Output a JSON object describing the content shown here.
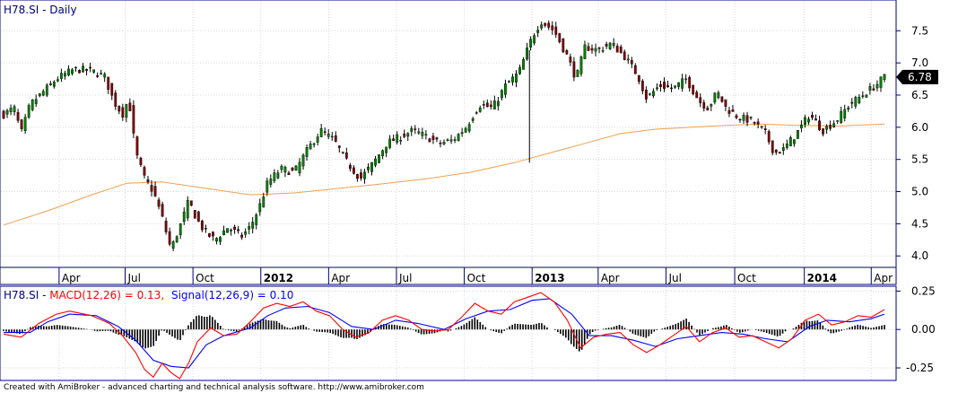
{
  "chart_data": [
    {
      "type": "candlestick",
      "title": "H78.SI - Daily",
      "y_ticks": [
        4.0,
        4.5,
        5.0,
        5.5,
        6.0,
        6.5,
        7.0,
        7.5
      ],
      "y_tick_labels": [
        "4.0",
        "4.5",
        "5.0",
        "5.5",
        "6.0",
        "6.5",
        "7.0",
        "7.5"
      ],
      "ylim": [
        3.85,
        7.95
      ],
      "last_value": 6.78,
      "last_value_label": "6.78",
      "x_labels": [
        {
          "label": "Apr",
          "year": false
        },
        {
          "label": "Jul",
          "year": false
        },
        {
          "label": "Oct",
          "year": false
        },
        {
          "label": "2012",
          "year": true
        },
        {
          "label": "Apr",
          "year": false
        },
        {
          "label": "Jul",
          "year": false
        },
        {
          "label": "Oct",
          "year": false
        },
        {
          "label": "2013",
          "year": true
        },
        {
          "label": "Apr",
          "year": false
        },
        {
          "label": "Jul",
          "year": false
        },
        {
          "label": "Oct",
          "year": false
        },
        {
          "label": "2014",
          "year": true
        },
        {
          "label": "Apr",
          "year": false
        }
      ],
      "price_path": [
        {
          "t": 0.0,
          "v": 6.2
        },
        {
          "t": 0.012,
          "v": 6.3
        },
        {
          "t": 0.02,
          "v": 5.9
        },
        {
          "t": 0.03,
          "v": 6.35
        },
        {
          "t": 0.045,
          "v": 6.55
        },
        {
          "t": 0.06,
          "v": 6.75
        },
        {
          "t": 0.08,
          "v": 6.9
        },
        {
          "t": 0.1,
          "v": 6.88
        },
        {
          "t": 0.115,
          "v": 6.78
        },
        {
          "t": 0.125,
          "v": 6.4
        },
        {
          "t": 0.135,
          "v": 6.2
        },
        {
          "t": 0.142,
          "v": 6.45
        },
        {
          "t": 0.15,
          "v": 5.6
        },
        {
          "t": 0.16,
          "v": 5.2
        },
        {
          "t": 0.17,
          "v": 5.0
        },
        {
          "t": 0.18,
          "v": 4.6
        },
        {
          "t": 0.19,
          "v": 4.1
        },
        {
          "t": 0.2,
          "v": 4.45
        },
        {
          "t": 0.21,
          "v": 4.85
        },
        {
          "t": 0.22,
          "v": 4.55
        },
        {
          "t": 0.23,
          "v": 4.35
        },
        {
          "t": 0.24,
          "v": 4.25
        },
        {
          "t": 0.255,
          "v": 4.45
        },
        {
          "t": 0.27,
          "v": 4.3
        },
        {
          "t": 0.28,
          "v": 4.45
        },
        {
          "t": 0.29,
          "v": 4.75
        },
        {
          "t": 0.3,
          "v": 5.15
        },
        {
          "t": 0.315,
          "v": 5.35
        },
        {
          "t": 0.33,
          "v": 5.3
        },
        {
          "t": 0.345,
          "v": 5.65
        },
        {
          "t": 0.36,
          "v": 5.95
        },
        {
          "t": 0.375,
          "v": 5.8
        },
        {
          "t": 0.39,
          "v": 5.45
        },
        {
          "t": 0.405,
          "v": 5.2
        },
        {
          "t": 0.42,
          "v": 5.45
        },
        {
          "t": 0.435,
          "v": 5.75
        },
        {
          "t": 0.45,
          "v": 5.85
        },
        {
          "t": 0.465,
          "v": 5.95
        },
        {
          "t": 0.48,
          "v": 5.85
        },
        {
          "t": 0.495,
          "v": 5.75
        },
        {
          "t": 0.51,
          "v": 5.8
        },
        {
          "t": 0.525,
          "v": 6.0
        },
        {
          "t": 0.54,
          "v": 6.35
        },
        {
          "t": 0.555,
          "v": 6.3
        },
        {
          "t": 0.57,
          "v": 6.65
        },
        {
          "t": 0.585,
          "v": 6.85
        },
        {
          "t": 0.6,
          "v": 7.4
        },
        {
          "t": 0.61,
          "v": 7.65
        },
        {
          "t": 0.625,
          "v": 7.5
        },
        {
          "t": 0.64,
          "v": 7.1
        },
        {
          "t": 0.65,
          "v": 6.75
        },
        {
          "t": 0.66,
          "v": 7.25
        },
        {
          "t": 0.675,
          "v": 7.2
        },
        {
          "t": 0.69,
          "v": 7.3
        },
        {
          "t": 0.705,
          "v": 7.1
        },
        {
          "t": 0.72,
          "v": 6.8
        },
        {
          "t": 0.73,
          "v": 6.45
        },
        {
          "t": 0.745,
          "v": 6.65
        },
        {
          "t": 0.76,
          "v": 6.6
        },
        {
          "t": 0.775,
          "v": 6.75
        },
        {
          "t": 0.79,
          "v": 6.4
        },
        {
          "t": 0.8,
          "v": 6.3
        },
        {
          "t": 0.81,
          "v": 6.55
        },
        {
          "t": 0.82,
          "v": 6.3
        },
        {
          "t": 0.835,
          "v": 6.15
        },
        {
          "t": 0.85,
          "v": 6.1
        },
        {
          "t": 0.865,
          "v": 5.9
        },
        {
          "t": 0.875,
          "v": 5.6
        },
        {
          "t": 0.885,
          "v": 5.65
        },
        {
          "t": 0.9,
          "v": 5.9
        },
        {
          "t": 0.915,
          "v": 6.2
        },
        {
          "t": 0.93,
          "v": 5.95
        },
        {
          "t": 0.945,
          "v": 6.1
        },
        {
          "t": 0.96,
          "v": 6.35
        },
        {
          "t": 0.975,
          "v": 6.5
        },
        {
          "t": 0.99,
          "v": 6.65
        },
        {
          "t": 1.0,
          "v": 6.78
        }
      ],
      "moving_average_path": [
        {
          "t": 0.0,
          "v": 4.48
        },
        {
          "t": 0.05,
          "v": 4.7
        },
        {
          "t": 0.1,
          "v": 4.95
        },
        {
          "t": 0.14,
          "v": 5.13
        },
        {
          "t": 0.18,
          "v": 5.15
        },
        {
          "t": 0.23,
          "v": 5.05
        },
        {
          "t": 0.28,
          "v": 4.95
        },
        {
          "t": 0.33,
          "v": 4.98
        },
        {
          "t": 0.38,
          "v": 5.05
        },
        {
          "t": 0.43,
          "v": 5.12
        },
        {
          "t": 0.48,
          "v": 5.2
        },
        {
          "t": 0.53,
          "v": 5.3
        },
        {
          "t": 0.58,
          "v": 5.45
        },
        {
          "t": 0.62,
          "v": 5.6
        },
        {
          "t": 0.66,
          "v": 5.75
        },
        {
          "t": 0.7,
          "v": 5.9
        },
        {
          "t": 0.74,
          "v": 5.97
        },
        {
          "t": 0.78,
          "v": 6.0
        },
        {
          "t": 0.82,
          "v": 6.03
        },
        {
          "t": 0.86,
          "v": 6.05
        },
        {
          "t": 0.9,
          "v": 6.03
        },
        {
          "t": 0.95,
          "v": 6.02
        },
        {
          "t": 1.0,
          "v": 6.05
        }
      ],
      "colors": {
        "up": "#008000",
        "down": "#800000",
        "moving_average": "#f0a050",
        "axis": "#000080"
      }
    },
    {
      "type": "line",
      "label_prefix": "H78.SI - ",
      "macd_label": "MACD(12,26) = 0.13,",
      "signal_label": "Signal(12,26,9) = 0.10",
      "y_ticks": [
        -0.25,
        0.0,
        0.25
      ],
      "y_tick_labels": [
        "-0.25",
        "0.00",
        "0.25"
      ],
      "ylim": [
        -0.32,
        0.27
      ],
      "macd_path": [
        {
          "t": 0.0,
          "v": -0.03
        },
        {
          "t": 0.02,
          "v": -0.05
        },
        {
          "t": 0.04,
          "v": 0.04
        },
        {
          "t": 0.06,
          "v": 0.1
        },
        {
          "t": 0.075,
          "v": 0.12
        },
        {
          "t": 0.1,
          "v": 0.09
        },
        {
          "t": 0.12,
          "v": 0.04
        },
        {
          "t": 0.135,
          "v": -0.04
        },
        {
          "t": 0.15,
          "v": -0.15
        },
        {
          "t": 0.16,
          "v": -0.26
        },
        {
          "t": 0.17,
          "v": -0.31
        },
        {
          "t": 0.18,
          "v": -0.22
        },
        {
          "t": 0.19,
          "v": -0.28
        },
        {
          "t": 0.2,
          "v": -0.32
        },
        {
          "t": 0.21,
          "v": -0.22
        },
        {
          "t": 0.22,
          "v": -0.08
        },
        {
          "t": 0.235,
          "v": 0.01
        },
        {
          "t": 0.25,
          "v": -0.04
        },
        {
          "t": 0.265,
          "v": -0.03
        },
        {
          "t": 0.28,
          "v": 0.05
        },
        {
          "t": 0.295,
          "v": 0.14
        },
        {
          "t": 0.31,
          "v": 0.17
        },
        {
          "t": 0.325,
          "v": 0.15
        },
        {
          "t": 0.34,
          "v": 0.18
        },
        {
          "t": 0.355,
          "v": 0.12
        },
        {
          "t": 0.37,
          "v": 0.09
        },
        {
          "t": 0.385,
          "v": 0.0
        },
        {
          "t": 0.4,
          "v": -0.05
        },
        {
          "t": 0.415,
          "v": -0.02
        },
        {
          "t": 0.43,
          "v": 0.06
        },
        {
          "t": 0.445,
          "v": 0.09
        },
        {
          "t": 0.46,
          "v": 0.06
        },
        {
          "t": 0.475,
          "v": 0.0
        },
        {
          "t": 0.49,
          "v": -0.01
        },
        {
          "t": 0.505,
          "v": 0.0
        },
        {
          "t": 0.52,
          "v": 0.08
        },
        {
          "t": 0.535,
          "v": 0.17
        },
        {
          "t": 0.55,
          "v": 0.12
        },
        {
          "t": 0.565,
          "v": 0.1
        },
        {
          "t": 0.58,
          "v": 0.18
        },
        {
          "t": 0.595,
          "v": 0.21
        },
        {
          "t": 0.61,
          "v": 0.24
        },
        {
          "t": 0.625,
          "v": 0.18
        },
        {
          "t": 0.64,
          "v": 0.06
        },
        {
          "t": 0.655,
          "v": -0.12
        },
        {
          "t": 0.67,
          "v": -0.05
        },
        {
          "t": 0.685,
          "v": -0.03
        },
        {
          "t": 0.7,
          "v": -0.02
        },
        {
          "t": 0.715,
          "v": -0.1
        },
        {
          "t": 0.73,
          "v": -0.15
        },
        {
          "t": 0.745,
          "v": -0.1
        },
        {
          "t": 0.76,
          "v": -0.04
        },
        {
          "t": 0.775,
          "v": 0.02
        },
        {
          "t": 0.79,
          "v": -0.08
        },
        {
          "t": 0.805,
          "v": -0.02
        },
        {
          "t": 0.82,
          "v": 0.01
        },
        {
          "t": 0.835,
          "v": -0.05
        },
        {
          "t": 0.85,
          "v": -0.04
        },
        {
          "t": 0.865,
          "v": -0.08
        },
        {
          "t": 0.88,
          "v": -0.12
        },
        {
          "t": 0.895,
          "v": -0.06
        },
        {
          "t": 0.91,
          "v": 0.06
        },
        {
          "t": 0.925,
          "v": 0.1
        },
        {
          "t": 0.94,
          "v": 0.03
        },
        {
          "t": 0.955,
          "v": 0.05
        },
        {
          "t": 0.97,
          "v": 0.09
        },
        {
          "t": 0.985,
          "v": 0.08
        },
        {
          "t": 1.0,
          "v": 0.13
        }
      ],
      "signal_path": [
        {
          "t": 0.0,
          "v": -0.02
        },
        {
          "t": 0.03,
          "v": -0.02
        },
        {
          "t": 0.05,
          "v": 0.05
        },
        {
          "t": 0.075,
          "v": 0.1
        },
        {
          "t": 0.105,
          "v": 0.09
        },
        {
          "t": 0.13,
          "v": 0.02
        },
        {
          "t": 0.15,
          "v": -0.07
        },
        {
          "t": 0.17,
          "v": -0.2
        },
        {
          "t": 0.19,
          "v": -0.24
        },
        {
          "t": 0.21,
          "v": -0.25
        },
        {
          "t": 0.23,
          "v": -0.1
        },
        {
          "t": 0.25,
          "v": -0.04
        },
        {
          "t": 0.28,
          "v": 0.01
        },
        {
          "t": 0.3,
          "v": 0.09
        },
        {
          "t": 0.32,
          "v": 0.14
        },
        {
          "t": 0.345,
          "v": 0.15
        },
        {
          "t": 0.37,
          "v": 0.11
        },
        {
          "t": 0.395,
          "v": 0.02
        },
        {
          "t": 0.42,
          "v": 0.0
        },
        {
          "t": 0.445,
          "v": 0.06
        },
        {
          "t": 0.47,
          "v": 0.04
        },
        {
          "t": 0.5,
          "v": 0.0
        },
        {
          "t": 0.525,
          "v": 0.07
        },
        {
          "t": 0.55,
          "v": 0.12
        },
        {
          "t": 0.575,
          "v": 0.13
        },
        {
          "t": 0.6,
          "v": 0.19
        },
        {
          "t": 0.62,
          "v": 0.2
        },
        {
          "t": 0.645,
          "v": 0.1
        },
        {
          "t": 0.665,
          "v": -0.04
        },
        {
          "t": 0.69,
          "v": -0.04
        },
        {
          "t": 0.715,
          "v": -0.07
        },
        {
          "t": 0.74,
          "v": -0.11
        },
        {
          "t": 0.765,
          "v": -0.06
        },
        {
          "t": 0.79,
          "v": -0.04
        },
        {
          "t": 0.815,
          "v": -0.02
        },
        {
          "t": 0.84,
          "v": -0.03
        },
        {
          "t": 0.865,
          "v": -0.06
        },
        {
          "t": 0.89,
          "v": -0.08
        },
        {
          "t": 0.915,
          "v": 0.02
        },
        {
          "t": 0.935,
          "v": 0.06
        },
        {
          "t": 0.96,
          "v": 0.05
        },
        {
          "t": 0.985,
          "v": 0.07
        },
        {
          "t": 1.0,
          "v": 0.1
        }
      ],
      "colors": {
        "macd": "#ff0000",
        "signal": "#0000ff",
        "histogram": "#000000"
      }
    }
  ],
  "footer": "Created with AmiBroker - advanced charting and technical analysis software. http://www.amibroker.com"
}
